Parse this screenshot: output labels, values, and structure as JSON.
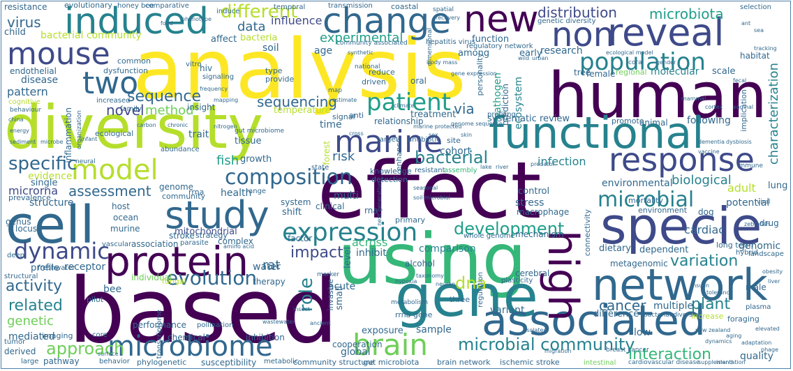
{
  "palette": {
    "dark_purple": "#440154",
    "indigo": "#3e4a89",
    "blue": "#31688e",
    "teal": "#26828e",
    "green_teal": "#1f9e89",
    "green": "#35b779",
    "lime": "#6ece58",
    "yellow_green": "#b5de2b",
    "yellow": "#fde725",
    "frame": "#4f7fa8"
  },
  "words": {
    "analysis": "analysis",
    "based": "based",
    "effect": "effect",
    "using": "using",
    "human": "human",
    "diversity": "diversity",
    "gene": "gene",
    "specie": "specie",
    "cell": "cell",
    "network": "network",
    "functional": "functional",
    "associated": "associated",
    "protein": "protein",
    "study": "study",
    "induced": "induced",
    "change": "change",
    "new": "new",
    "reveal": "reveal",
    "mouse": "mouse",
    "two": "two",
    "non": "non",
    "population": "population",
    "response": "response",
    "model": "model",
    "marine": "marine",
    "microbiome": "microbiome",
    "brain": "brain",
    "expression": "expression",
    "high": "high",
    "dynamic": "dynamic",
    "composition": "composition",
    "microbial": "microbial",
    "patient": "patient",
    "evolution": "evolution",
    "development": "development",
    "variation": "variation",
    "different": "different",
    "distribution": "distribution",
    "microbiota": "microbiota",
    "microbial_community": "microbial community",
    "approach": "approach",
    "related": "related",
    "activity": "activity",
    "specific": "specific",
    "sequence": "sequence",
    "interaction": "interaction",
    "cancer": "cancer",
    "plant": "plant",
    "assessment": "assessment",
    "impact": "impact",
    "bacterial": "bacterial",
    "role": "role",
    "dna": "dna",
    "sequencing": "sequencing",
    "virus": "virus",
    "data": "data",
    "influence": "influence",
    "experimental": "experimental",
    "novel": "novel",
    "method": "method",
    "pattern": "pattern",
    "infection": "infection",
    "biological": "biological",
    "genetic": "genetic",
    "characterization": "characterization",
    "cardiac": "cardiac",
    "adult": "adult",
    "potential": "potential",
    "risk": "risk",
    "rat": "rat",
    "structure": "structure",
    "microrna": "microrna",
    "association": "association",
    "mitochondrial": "mitochondrial",
    "genomic": "genomic",
    "via": "via",
    "fish": "fish",
    "water": "water",
    "comparison": "comparison",
    "across": "across",
    "inhibit": "inhibit",
    "environmental": "environmental",
    "health": "health",
    "research": "research",
    "stress": "stress",
    "ecosystem": "ecosystem",
    "pathogen": "pathogen",
    "mediated": "mediated",
    "multi": "multi",
    "cohort": "cohort",
    "individual": "individual",
    "receptor": "receptor",
    "bee": "bee",
    "acute": "acute",
    "disease": "disease",
    "resistance": "resistance",
    "lung": "lung",
    "profile": "profile",
    "exposure": "exposure",
    "molecular": "molecular",
    "multiple": "multiple",
    "difference": "difference",
    "low": "low",
    "global": "global",
    "sample": "sample",
    "variant": "variant",
    "chemical": "chemical",
    "inhibition": "inhibition",
    "pathway": "pathway",
    "susceptibility": "susceptibility",
    "phylogenetic": "phylogenetic",
    "community_structure": "community structure",
    "gut_microbiota": "gut microbiota",
    "brain_network": "brain network",
    "ischemic_stroke": "ischemic stroke",
    "cooperation": "cooperation",
    "quality": "quality",
    "soil": "soil",
    "hiv": "hiv",
    "age": "age",
    "early": "early",
    "among": "among",
    "signal": "signal",
    "growth": "growth",
    "tissue": "tissue",
    "trait": "trait",
    "knowledge": "knowledge",
    "systematic_review": "systematic review",
    "following": "following",
    "temperature": "temperature",
    "treatment": "treatment",
    "relationship": "relationship",
    "time": "time",
    "host": "host",
    "genus": "genus",
    "locus": "locus",
    "stroke": "stroke",
    "complex": "complex",
    "therapy": "therapy",
    "performance": "performance",
    "level": "level",
    "clinical": "clinical",
    "control": "control",
    "genome": "genome",
    "rrna": "rrna",
    "memory": "memory",
    "insight": "insight",
    "rna": "rna",
    "tree": "tree",
    "animal": "animal",
    "promote": "promote",
    "regional": "regional",
    "ecological": "ecological",
    "affect": "affect",
    "bacteria": "bacteria",
    "inflammation": "inflammation",
    "endothelial": "endothelial",
    "child": "child",
    "murine": "murine",
    "ocean": "ocean",
    "factor": "factor",
    "dietary": "dietary",
    "dependent": "dependent",
    "scale": "scale",
    "female": "female",
    "male": "male",
    "dog": "dog",
    "drug": "drug",
    "environment": "environment",
    "evidence": "evidence",
    "single": "single",
    "prevalence": "prevalence",
    "community": "community",
    "evolutionary": "evolutionary",
    "honey_bee": "honey bee",
    "comparative": "comparative",
    "induce": "induce",
    "temporal": "temporal",
    "transmission": "transmission",
    "coastal": "coastal",
    "selection": "selection",
    "genetic_diversity": "genetic diversity",
    "bacterial_community": "bacterial community",
    "hepatitis_virus": "hepatitis virus",
    "function": "function",
    "regulatory_network": "regulatory network",
    "community_associated": "community associated",
    "habitat": "habitat",
    "alcohol": "alcohol",
    "plasticity": "plasticity",
    "mechanism": "mechanism",
    "macrophage": "macrophage",
    "primary": "primary",
    "forest": "forest",
    "small": "small",
    "invasive": "invasive",
    "long_term": "long term",
    "hybrid": "hybrid",
    "landscape": "landscape",
    "increase": "increase",
    "foraging": "foraging",
    "metabolic": "metabolic",
    "behavior": "behavior",
    "large": "large",
    "tumor": "tumor",
    "derived": "derived",
    "imaging": "imaging",
    "pollination": "pollination",
    "core": "core",
    "pilot": "pilot",
    "deep": "deep",
    "structural": "structural",
    "freshwater": "freshwater",
    "vascular": "vascular",
    "parasite": "parasite",
    "strategy": "strategy",
    "connectivity": "connectivity",
    "mortality": "mortality",
    "implication": "implication",
    "enhance": "enhance",
    "modulate": "modulate",
    "target": "target",
    "antibiotic": "antibiotic",
    "detection": "detection",
    "personality": "personality",
    "dysfunction": "dysfunction",
    "common": "common",
    "increased": "increased",
    "family": "family",
    "reduce": "reduce",
    "driven": "driven",
    "metagenomic": "metagenomic",
    "plasma": "plasma",
    "resistant": "resistant",
    "assembly": "assembly",
    "vitro": "vitro",
    "signaling": "signaling",
    "provide": "provide",
    "type": "type",
    "anti": "anti",
    "site": "site",
    "state": "state",
    "shift": "shift",
    "system": "system",
    "range": "range",
    "three": "three",
    "bacterial_diversity": "bacterial diversity",
    "breast_cancer": "breast cancer",
    "cardiovascular_disease": "cardiovascular disease",
    "intestinal": "intestinal",
    "whole_genome": "whole genome",
    "profiling": "profiling",
    "abundance": "abundance",
    "dimensional": "dimensional",
    "organization": "organization",
    "prediction": "prediction",
    "cerebral": "cerebral",
    "next_generation": "next generation",
    "gut_microbiome": "gut microbiome",
    "amino_acid": "amino acid",
    "marine_protected": "marine protected",
    "genome_sequence": "genome sequence",
    "rrna_gene": "rrna gene",
    "ecological_model": "ecological model",
    "synthetic": "synthetic",
    "viral": "viral",
    "oral": "oral",
    "national": "national",
    "cognitive": "cognitive",
    "neural": "neural",
    "climate": "climate",
    "estimate": "estimate",
    "map": "map",
    "cross": "cross",
    "gene_expression": "gene expression",
    "fungal": "fungal",
    "immune": "immune",
    "regulation": "regulation",
    "zebrafish": "zebrafish",
    "adaptation": "adaptation",
    "elevated": "elevated",
    "dynamics": "dynamics",
    "metabolism": "metabolism",
    "frequency": "frequency",
    "transcriptome": "transcriptome",
    "food": "food",
    "spatial": "spatial",
    "recovery": "recovery",
    "phenotype": "phenotype",
    "surface": "surface",
    "island": "island",
    "behaviour": "behaviour",
    "mapping": "mapping",
    "infant": "infant",
    "china": "china",
    "energy": "energy",
    "sediment": "sediment",
    "microbe": "microbe",
    "carbon": "carbon",
    "chronic": "chronic",
    "nitrogen": "nitrogen",
    "coral": "coral",
    "gender": "gender",
    "dementia": "dementia",
    "dysbiosis": "dysbiosis",
    "fecal": "fecal",
    "vaginal": "vaginal",
    "vaccine": "vaccine",
    "cortex": "cortex",
    "mammal": "mammal",
    "tracking": "tracking",
    "ant": "ant",
    "sea": "sea",
    "new_zealand": "new zealand",
    "supplementation": "supplementation",
    "obesity": "obesity",
    "liver": "liver",
    "skin": "skin",
    "sex": "sex",
    "wild": "wild",
    "urban": "urban",
    "predator": "predator",
    "lake": "lake",
    "river": "river",
    "seasonal": "seasonal",
    "soil_microbial": "soil microbial",
    "body_mass": "body mass",
    "taxonomy": "taxonomy",
    "marker": "marker",
    "hypoxia": "hypoxia",
    "neuron": "neuron",
    "insect": "insect",
    "wastewater": "wastewater",
    "ancient": "ancient",
    "migration": "migration",
    "isolated": "isolated",
    "phage": "phage",
    "aging": "aging",
    "insulin": "insulin",
    "tolerance": "tolerance"
  }
}
